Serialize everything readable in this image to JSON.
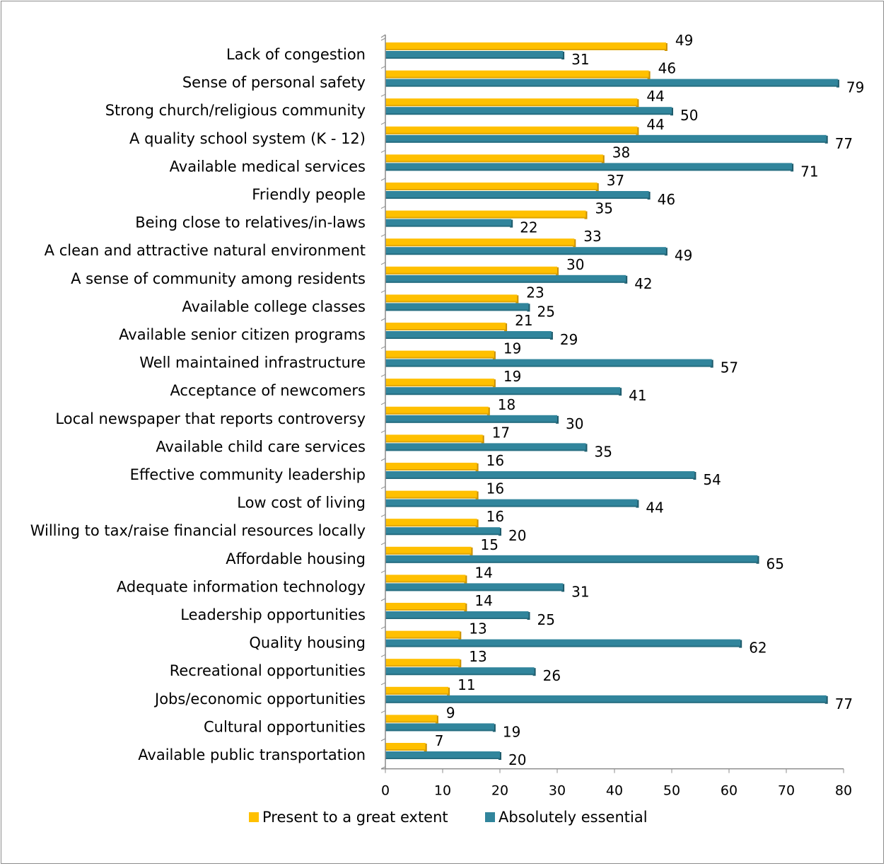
{
  "chart_data": {
    "type": "bar",
    "orientation": "horizontal",
    "categories": [
      "Lack of congestion",
      "Sense of personal safety",
      "Strong church/religious community",
      "A quality school system (K - 12)",
      "Available medical services",
      "Friendly people",
      "Being close to relatives/in-laws",
      "A clean and attractive natural environment",
      "A sense of community among residents",
      "Available college classes",
      "Available senior citizen programs",
      "Well maintained infrastructure",
      "Acceptance of newcomers",
      "Local newspaper that reports controversy",
      "Available child care services",
      "Effective community leadership",
      "Low cost of living",
      "Willing to tax/raise financial resources locally",
      "Affordable housing",
      "Adequate information technology",
      "Leadership opportunities",
      "Quality housing",
      "Recreational opportunities",
      "Jobs/economic opportunities",
      "Cultural opportunities",
      "Available public transportation"
    ],
    "series": [
      {
        "name": "Present to a great extent",
        "color": "#FFC000",
        "values": [
          49,
          46,
          44,
          44,
          38,
          37,
          35,
          33,
          30,
          23,
          21,
          19,
          19,
          18,
          17,
          16,
          16,
          16,
          15,
          14,
          14,
          13,
          13,
          11,
          9,
          7
        ]
      },
      {
        "name": "Absolutely essential",
        "color": "#31859C",
        "values": [
          31,
          79,
          50,
          77,
          71,
          46,
          22,
          49,
          42,
          25,
          29,
          57,
          41,
          30,
          35,
          54,
          44,
          20,
          65,
          31,
          25,
          62,
          26,
          77,
          19,
          20
        ]
      }
    ],
    "x_ticks": [
      "0",
      "10",
      "20",
      "30",
      "40",
      "50",
      "60",
      "70",
      "80"
    ],
    "xlim": [
      0,
      80
    ],
    "grid": false,
    "legend": "bottom",
    "title": "",
    "xlabel": "",
    "ylabel": ""
  }
}
